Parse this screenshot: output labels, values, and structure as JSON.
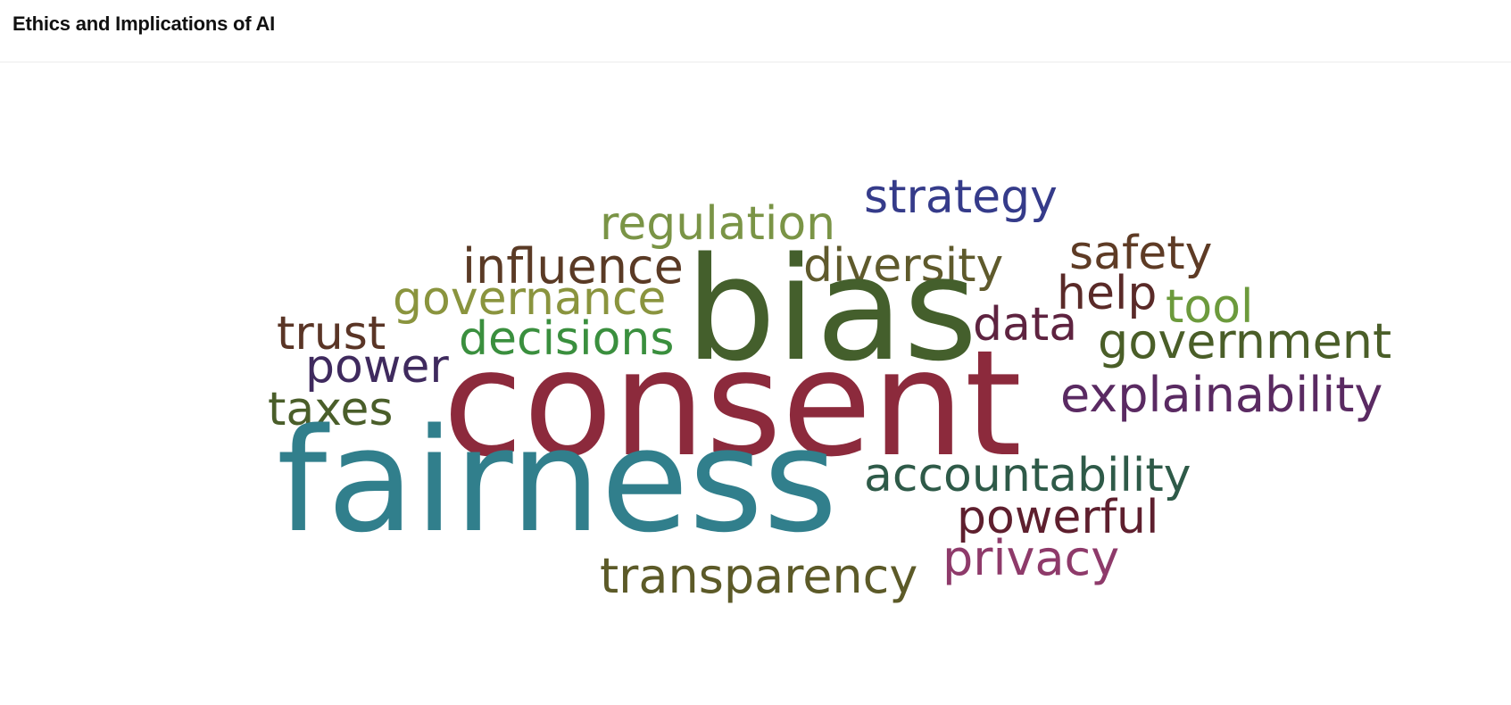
{
  "header": {
    "title": "Ethics and Implications of AI"
  },
  "word_cloud": {
    "words": [
      {
        "text": "strategy",
        "color": "#353b8a"
      },
      {
        "text": "regulation",
        "color": "#7a9446"
      },
      {
        "text": "influence",
        "color": "#5a3a25"
      },
      {
        "text": "diversity",
        "color": "#5f5a2c"
      },
      {
        "text": "safety",
        "color": "#5e3b25"
      },
      {
        "text": "governance",
        "color": "#8a943e"
      },
      {
        "text": "help",
        "color": "#5a2a28"
      },
      {
        "text": "tool",
        "color": "#6c9a3c"
      },
      {
        "text": "trust",
        "color": "#5a3526"
      },
      {
        "text": "decisions",
        "color": "#3a8f3e"
      },
      {
        "text": "data",
        "color": "#5e2340"
      },
      {
        "text": "government",
        "color": "#4a5e28"
      },
      {
        "text": "power",
        "color": "#3f2a5e"
      },
      {
        "text": "bias",
        "color": "#445f2c"
      },
      {
        "text": "explainability",
        "color": "#5a2a62"
      },
      {
        "text": "taxes",
        "color": "#4a5e2a"
      },
      {
        "text": "consent",
        "color": "#8c2a3c"
      },
      {
        "text": "accountability",
        "color": "#2e5a48"
      },
      {
        "text": "fairness",
        "color": "#317f8c"
      },
      {
        "text": "powerful",
        "color": "#5e1f2e"
      },
      {
        "text": "privacy",
        "color": "#8e3a6a"
      },
      {
        "text": "transparency",
        "color": "#5c5a28"
      }
    ]
  }
}
